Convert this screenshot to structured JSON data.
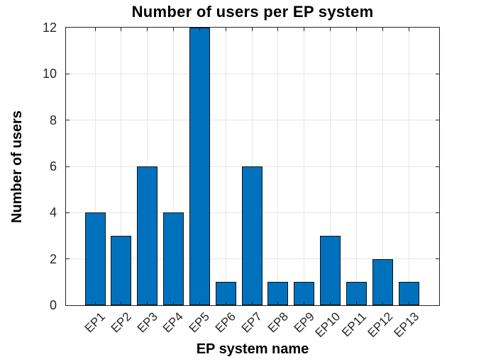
{
  "chart_data": {
    "type": "bar",
    "title": "Number of users per EP system",
    "xlabel": "EP system name",
    "ylabel": "Number of users",
    "categories": [
      "EP1",
      "EP2",
      "EP3",
      "EP4",
      "EP5",
      "EP6",
      "EP7",
      "EP8",
      "EP9",
      "EP10",
      "EP11",
      "EP12",
      "EP13"
    ],
    "values": [
      4,
      3,
      6,
      4,
      12,
      1,
      6,
      1,
      1,
      3,
      1,
      2,
      1
    ],
    "yticks": [
      0,
      2,
      4,
      6,
      8,
      10,
      12
    ],
    "ylim": [
      0,
      12
    ],
    "grid": true,
    "legend": "none",
    "bar_color": "#0072BD",
    "bar_edge_color": "#111111",
    "grid_color": "#e6e6e6",
    "axis_color": "#262626",
    "tick_label_color": "#262626",
    "text_color": "#000000",
    "background_color": "#ffffff"
  }
}
